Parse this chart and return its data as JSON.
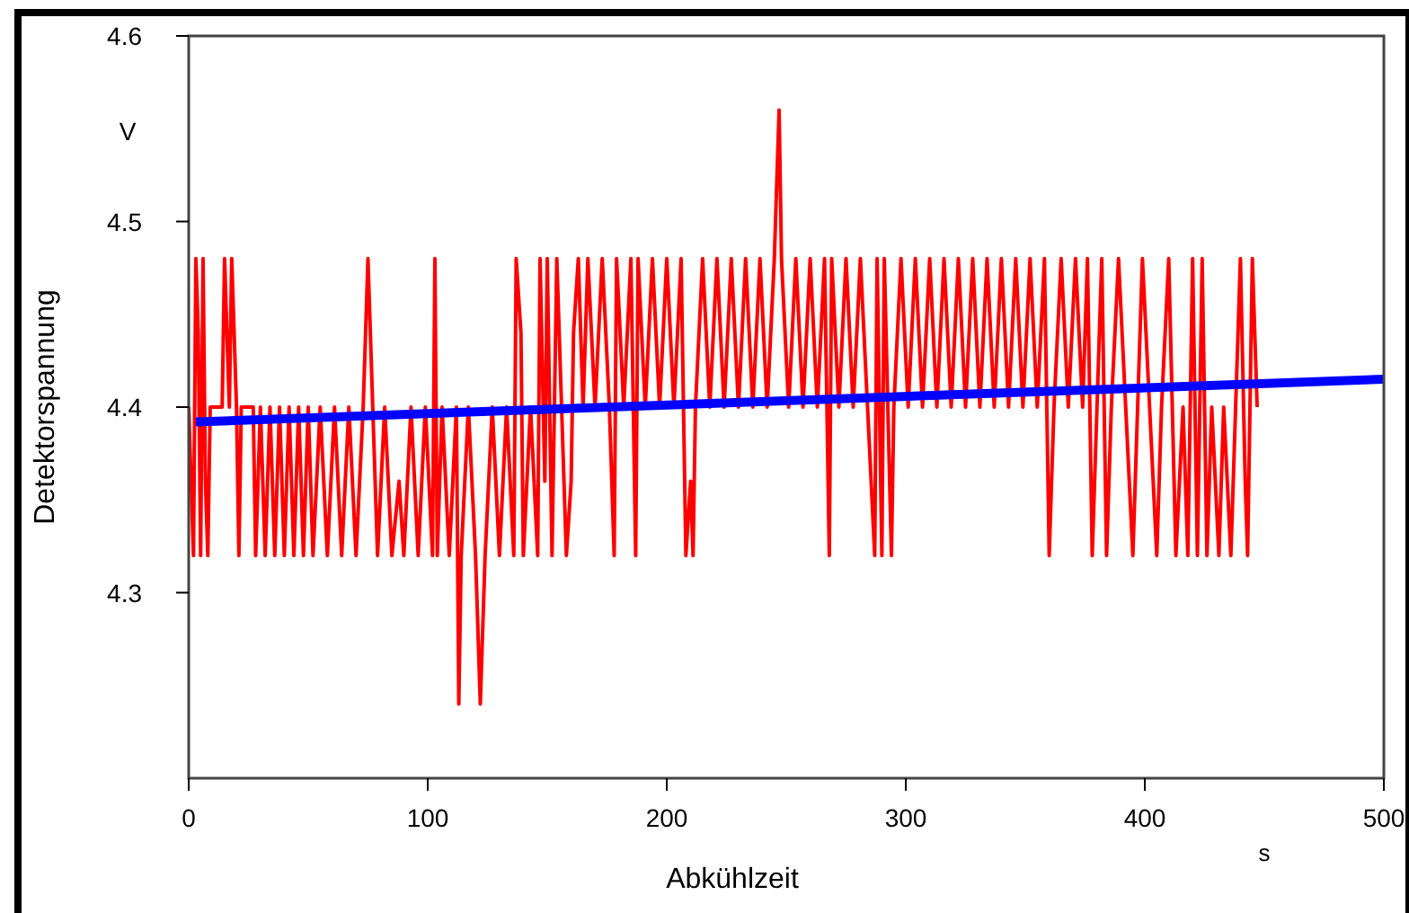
{
  "chart_data": {
    "type": "line",
    "xlabel": "Abkühlzeit",
    "ylabel": "Detektorspannung",
    "annotations": [
      "V",
      "s"
    ],
    "xlim": [
      0,
      500
    ],
    "xticks": [
      0,
      100,
      200,
      300,
      400,
      500
    ],
    "ylim": [
      4.2,
      4.6
    ],
    "yticks": [
      4.3,
      4.4,
      4.5,
      4.6
    ],
    "grid": false,
    "line_style": "solid",
    "series": [
      {
        "color": "#ff0000",
        "x": [
          0,
          2,
          3,
          4,
          5,
          6,
          7,
          8,
          9,
          14,
          15,
          17,
          18,
          20,
          21,
          22,
          27,
          28,
          30,
          32,
          34,
          36,
          38,
          40,
          42,
          44,
          46,
          48,
          50,
          52,
          55,
          58,
          61,
          64,
          67,
          70,
          73,
          75,
          77,
          79,
          82,
          85,
          88,
          90,
          93,
          96,
          99,
          102,
          103,
          104,
          106,
          109,
          112,
          113,
          114,
          117,
          120,
          122,
          124,
          127,
          130,
          133,
          136,
          137,
          139,
          140,
          143,
          146,
          147,
          149,
          150,
          152,
          154,
          156,
          158,
          160,
          161,
          163,
          165,
          167,
          170,
          173,
          176,
          178,
          179,
          182,
          185,
          187,
          188,
          191,
          194,
          197,
          200,
          203,
          206,
          208,
          210,
          211,
          212,
          215,
          218,
          221,
          224,
          227,
          230,
          233,
          236,
          239,
          242,
          245,
          247,
          248,
          251,
          254,
          257,
          260,
          263,
          266,
          268,
          269,
          272,
          275,
          278,
          281,
          284,
          287,
          288,
          290,
          291,
          294,
          295,
          298,
          301,
          304,
          307,
          310,
          313,
          316,
          319,
          322,
          325,
          328,
          331,
          334,
          337,
          340,
          343,
          346,
          349,
          352,
          355,
          358,
          360,
          362,
          365,
          368,
          371,
          374,
          376,
          378,
          380,
          382,
          384,
          386,
          389,
          392,
          395,
          397,
          399,
          402,
          405,
          407,
          410,
          413,
          416,
          418,
          420,
          422,
          424,
          426,
          428,
          431,
          433,
          436,
          438,
          440,
          442,
          443,
          445,
          447
        ],
        "values": [
          4.4,
          4.32,
          4.48,
          4.44,
          4.32,
          4.48,
          4.36,
          4.32,
          4.4,
          4.4,
          4.48,
          4.4,
          4.48,
          4.4,
          4.32,
          4.4,
          4.4,
          4.32,
          4.4,
          4.32,
          4.4,
          4.32,
          4.4,
          4.32,
          4.4,
          4.32,
          4.4,
          4.32,
          4.4,
          4.32,
          4.4,
          4.32,
          4.4,
          4.32,
          4.4,
          4.32,
          4.4,
          4.48,
          4.4,
          4.32,
          4.4,
          4.32,
          4.36,
          4.32,
          4.4,
          4.32,
          4.4,
          4.32,
          4.48,
          4.32,
          4.4,
          4.32,
          4.4,
          4.24,
          4.32,
          4.4,
          4.32,
          4.24,
          4.32,
          4.4,
          4.32,
          4.4,
          4.32,
          4.48,
          4.44,
          4.32,
          4.4,
          4.32,
          4.48,
          4.36,
          4.48,
          4.32,
          4.48,
          4.4,
          4.32,
          4.36,
          4.44,
          4.48,
          4.4,
          4.48,
          4.4,
          4.48,
          4.4,
          4.32,
          4.48,
          4.4,
          4.48,
          4.32,
          4.48,
          4.4,
          4.48,
          4.4,
          4.48,
          4.4,
          4.48,
          4.32,
          4.36,
          4.32,
          4.4,
          4.48,
          4.4,
          4.48,
          4.4,
          4.48,
          4.4,
          4.48,
          4.4,
          4.48,
          4.4,
          4.48,
          4.56,
          4.48,
          4.4,
          4.48,
          4.4,
          4.48,
          4.4,
          4.48,
          4.32,
          4.48,
          4.4,
          4.48,
          4.4,
          4.48,
          4.4,
          4.32,
          4.48,
          4.32,
          4.48,
          4.32,
          4.4,
          4.48,
          4.4,
          4.48,
          4.4,
          4.48,
          4.4,
          4.48,
          4.4,
          4.48,
          4.4,
          4.48,
          4.4,
          4.48,
          4.4,
          4.48,
          4.4,
          4.48,
          4.4,
          4.48,
          4.4,
          4.48,
          4.32,
          4.4,
          4.48,
          4.4,
          4.48,
          4.4,
          4.48,
          4.32,
          4.4,
          4.48,
          4.32,
          4.4,
          4.48,
          4.4,
          4.32,
          4.4,
          4.48,
          4.4,
          4.32,
          4.4,
          4.48,
          4.32,
          4.4,
          4.32,
          4.48,
          4.32,
          4.48,
          4.32,
          4.4,
          4.32,
          4.4,
          4.32,
          4.4,
          4.48,
          4.36,
          4.32,
          4.48,
          4.4
        ]
      },
      {
        "color": "#0000ff",
        "x": [
          3,
          500
        ],
        "values": [
          4.392,
          4.415
        ]
      }
    ]
  }
}
